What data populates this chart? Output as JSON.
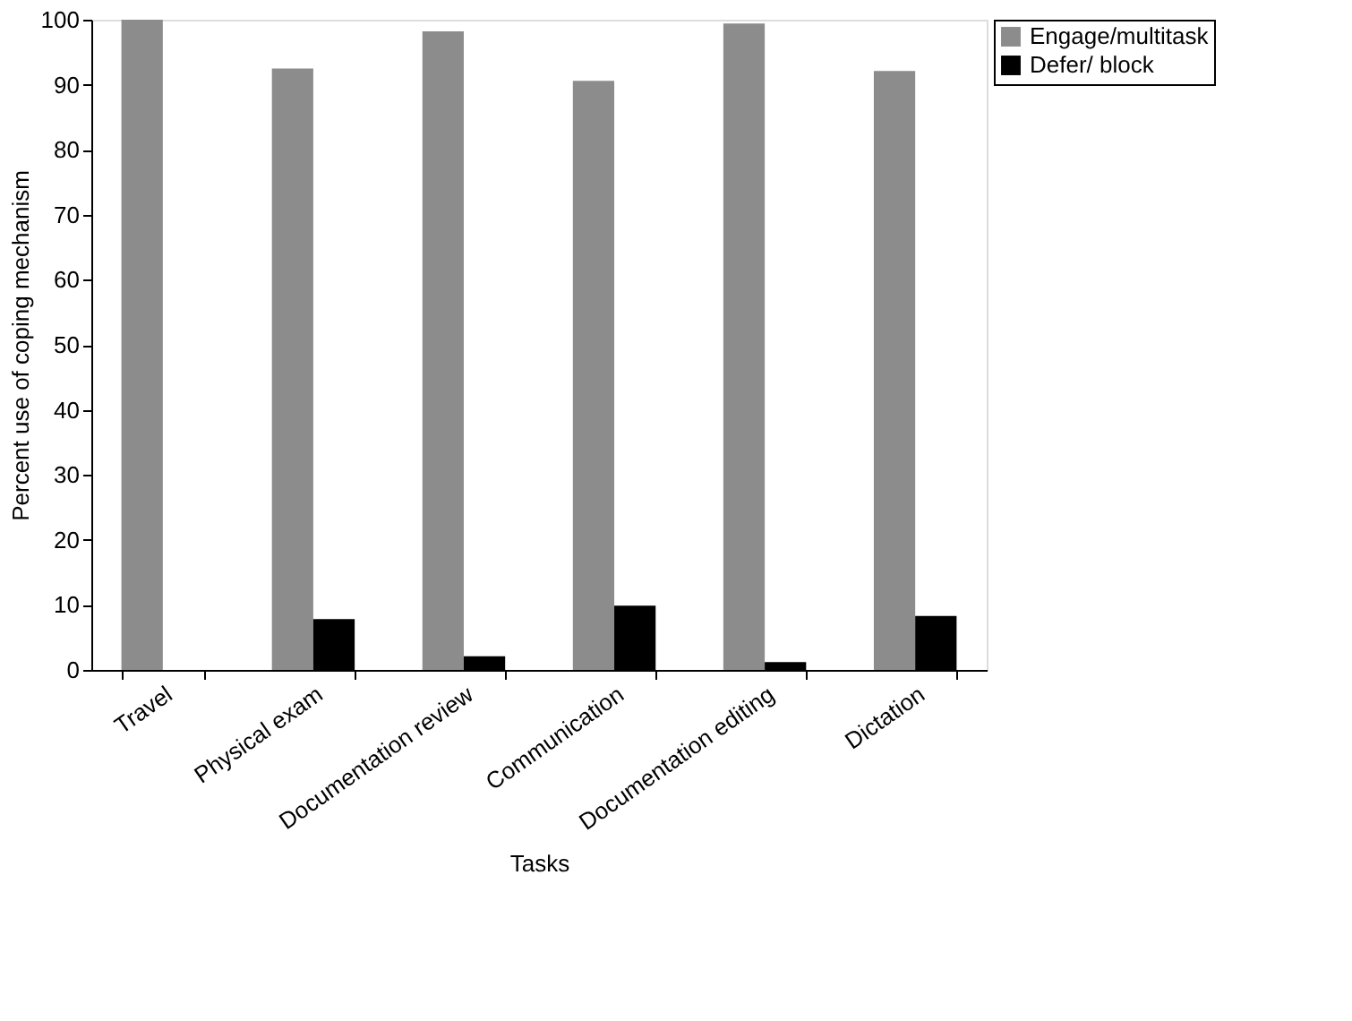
{
  "chart_data": {
    "type": "bar",
    "xlabel": "Tasks",
    "ylabel": "Percent use of coping mechanism",
    "categories": [
      "Travel",
      "Physical exam",
      "Documentation review",
      "Communication",
      "Documentation editing",
      "Dictation"
    ],
    "series": [
      {
        "name": "Engage/multitask",
        "color": "#8c8c8c",
        "values": [
          100,
          92.5,
          98.2,
          90.6,
          99.4,
          92.1
        ]
      },
      {
        "name": "Defer/ block",
        "color": "#000000",
        "values": [
          0,
          7.8,
          2.1,
          9.9,
          1.2,
          8.3
        ]
      }
    ],
    "ylim": [
      0,
      100
    ],
    "yticks": [
      0,
      10,
      20,
      30,
      40,
      50,
      60,
      70,
      80,
      90,
      100
    ],
    "grid": false,
    "legend": "right"
  }
}
